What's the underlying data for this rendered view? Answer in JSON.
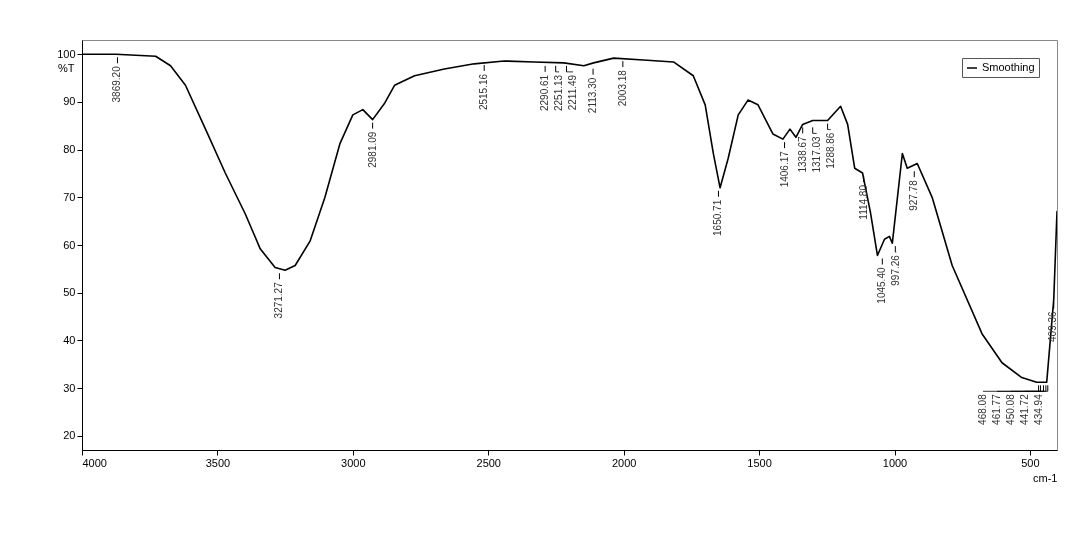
{
  "chart_data": {
    "type": "line",
    "xlabel": "cm-1",
    "ylabel": "%T",
    "xlim": [
      4000,
      400
    ],
    "xticks": [
      4000,
      3500,
      3000,
      2500,
      2000,
      1500,
      1000,
      500
    ],
    "ylim": [
      17,
      103
    ],
    "yticks": [
      20,
      30,
      40,
      50,
      60,
      70,
      80,
      90,
      100
    ],
    "grid": false,
    "legend": "top right",
    "marker": "none",
    "line_style": "solid",
    "series": [
      {
        "name": "Smoothing",
        "color": "#000000",
        "x": [
          4000,
          3875,
          3728,
          3673,
          3618,
          3544,
          3471,
          3397,
          3342,
          3287,
          3250,
          3213,
          3158,
          3103,
          3048,
          3000,
          2963,
          2927,
          2882,
          2846,
          2772,
          2662,
          2552,
          2441,
          2331,
          2221,
          2147,
          2111,
          2037,
          1927,
          1816,
          1743,
          1699,
          1669,
          1644,
          1614,
          1577,
          1541,
          1504,
          1449,
          1412,
          1386,
          1364,
          1339,
          1302,
          1247,
          1199,
          1173,
          1147,
          1118,
          1089,
          1063,
          1037,
          1019,
          1008,
          971,
          953,
          916,
          861,
          787,
          677,
          603,
          530,
          475,
          438,
          412,
          400
        ],
        "values": [
          100,
          100,
          99.6,
          97.6,
          93.5,
          84.3,
          75.1,
          66.5,
          59.2,
          55.3,
          54.7,
          55.7,
          60.8,
          70,
          81.2,
          87.3,
          88.4,
          86.3,
          89.8,
          93.5,
          95.5,
          96.9,
          98,
          98.6,
          98.4,
          98.2,
          97.6,
          98.2,
          99.2,
          98.8,
          98.4,
          95.5,
          89.4,
          79.2,
          72,
          78.2,
          87.3,
          90.4,
          89.4,
          83.3,
          82.2,
          84.3,
          82.6,
          85.3,
          86.1,
          86.1,
          89.1,
          85.3,
          76.1,
          75.1,
          66.9,
          57.8,
          61.2,
          61.8,
          60.4,
          79.2,
          76.1,
          77.1,
          70,
          55.7,
          41.4,
          35.3,
          32.2,
          31.2,
          31.2,
          48.6,
          67
        ]
      }
    ],
    "annotations": [
      {
        "text": "3869.20",
        "x": 3869,
        "y": 100
      },
      {
        "text": "3271.27",
        "x": 3271,
        "y": 54.7
      },
      {
        "text": "2981.09",
        "x": 2927,
        "y": 86.3
      },
      {
        "text": "2515.16",
        "x": 2515,
        "y": 98.4
      },
      {
        "text": "2290.61",
        "x": 2290,
        "y": 98.2
      },
      {
        "text": "2251.13",
        "x": 2251,
        "y": 98.2
      },
      {
        "text": "2211.49",
        "x": 2211,
        "y": 98.2
      },
      {
        "text": "2113.30",
        "x": 2113,
        "y": 97.6
      },
      {
        "text": "2003.18",
        "x": 2003,
        "y": 99.2
      },
      {
        "text": "1650.71",
        "x": 1650,
        "y": 72
      },
      {
        "text": "1406.17",
        "x": 1406,
        "y": 82.2
      },
      {
        "text": "1338.67",
        "x": 1339,
        "y": 85.3
      },
      {
        "text": "1317.03",
        "x": 1302,
        "y": 85.3
      },
      {
        "text": "1288.86",
        "x": 1247,
        "y": 86.1
      },
      {
        "text": "1114.80",
        "x": 1114,
        "y": 75.1
      },
      {
        "text": "1045.40",
        "x": 1045,
        "y": 57.8
      },
      {
        "text": "997.26",
        "x": 997,
        "y": 60.4
      },
      {
        "text": "927.78",
        "x": 927,
        "y": 76.1
      },
      {
        "text": "468.08",
        "x": 468,
        "y": 31.2
      },
      {
        "text": "461.77",
        "x": 461,
        "y": 31.2
      },
      {
        "text": "450.08",
        "x": 450,
        "y": 31.2
      },
      {
        "text": "441.72",
        "x": 441,
        "y": 31.2
      },
      {
        "text": "434.94",
        "x": 434,
        "y": 31.2
      },
      {
        "text": "409.36",
        "x": 412,
        "y": 48.6
      }
    ]
  }
}
